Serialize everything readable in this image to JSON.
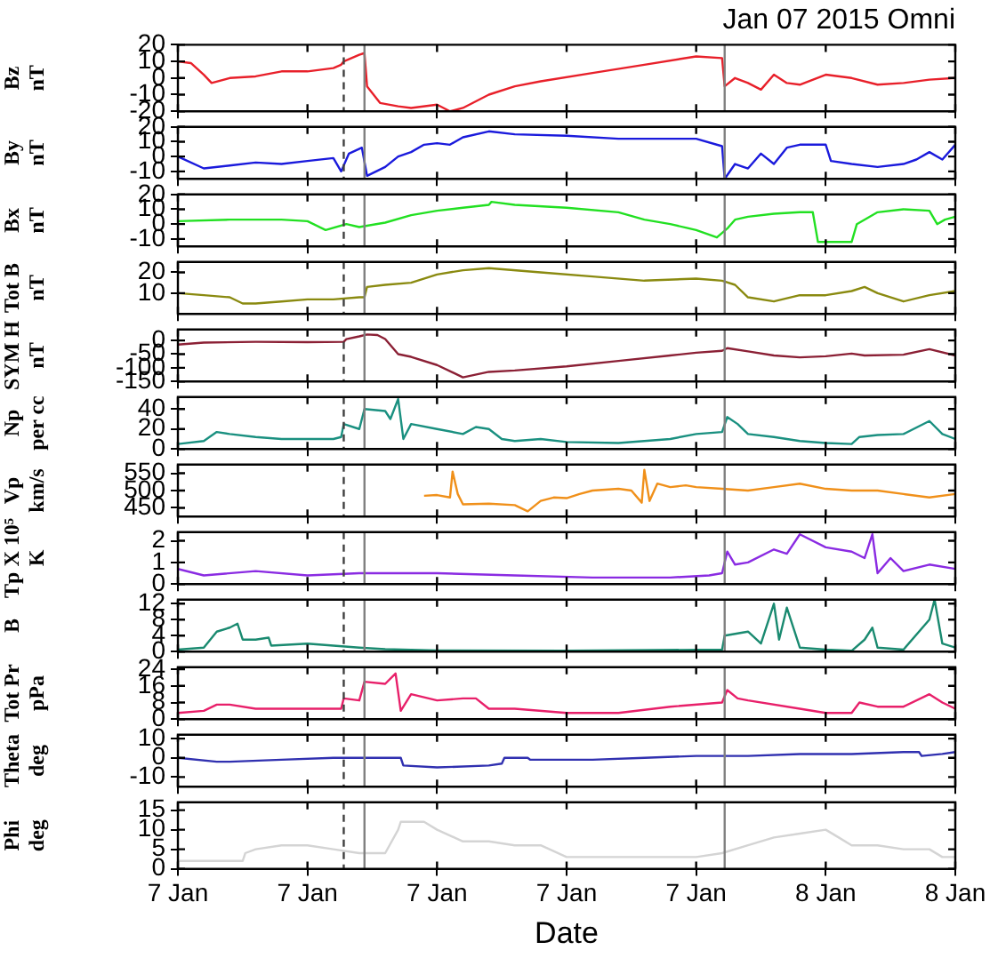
{
  "chart_data": [
    {
      "type": "line",
      "title": "Jan 07 2015 Omni",
      "ylabel": "Bz\nnT",
      "color": "#e8202a",
      "tick_labels": "y",
      "xlim": [
        "2015-01-07T00:00",
        "2015-01-08T06:00"
      ],
      "xticks": [
        {
          "value": "2015-01-07T00:00",
          "label": null
        },
        {
          "value": "2015-01-07T05:00",
          "label": null
        },
        {
          "value": "2015-01-07T10:00",
          "label": null
        },
        {
          "value": "2015-01-07T15:00",
          "label": null
        },
        {
          "value": "2015-01-07T20:00",
          "label": null
        },
        {
          "value": "2015-01-08T01:00",
          "label": null
        },
        {
          "value": "2015-01-08T06:00",
          "label": null
        }
      ],
      "ylim": [
        -20,
        20
      ],
      "yticks": [
        -20,
        -10,
        0,
        10,
        20
      ],
      "x": [
        "2015-01-07T00:00",
        "2015-01-07T00:30",
        "2015-01-07T01:00",
        "2015-01-07T01:18",
        "2015-01-07T02:00",
        "2015-01-07T03:00",
        "2015-01-07T04:00",
        "2015-01-07T05:00",
        "2015-01-07T06:00",
        "2015-01-07T06:18",
        "2015-01-07T06:24",
        "2015-01-07T07:00",
        "2015-01-07T07:12",
        "2015-01-07T07:18",
        "2015-01-07T07:48",
        "2015-01-07T08:30",
        "2015-01-07T09:00",
        "2015-01-07T10:00",
        "2015-01-07T10:30",
        "2015-01-07T11:00",
        "2015-01-07T12:00",
        "2015-01-07T13:00",
        "2015-01-07T14:00",
        "2015-01-07T16:00",
        "2015-01-07T18:00",
        "2015-01-07T20:00",
        "2015-01-07T21:00",
        "2015-01-07T21:06",
        "2015-01-07T21:30",
        "2015-01-07T22:00",
        "2015-01-07T22:30",
        "2015-01-07T23:00",
        "2015-01-07T23:30",
        "2015-01-08T00:00",
        "2015-01-08T01:00",
        "2015-01-08T02:00",
        "2015-01-08T03:00",
        "2015-01-08T04:00",
        "2015-01-08T05:00",
        "2015-01-08T06:00"
      ],
      "values": [
        10,
        9,
        2,
        -3,
        0,
        1,
        4,
        4,
        6,
        8,
        10,
        14,
        15,
        -5,
        -15,
        -17,
        -18,
        -16,
        -20,
        -18,
        -10,
        -5,
        -2,
        3,
        8,
        13,
        12,
        -5,
        0,
        -3,
        -7,
        2,
        -3,
        -4,
        2,
        0,
        -4,
        -3,
        -1,
        0
      ],
      "ref_lines": [
        {
          "axis": "x",
          "value": "2015-01-07T06:24",
          "line_style": "dashed",
          "color": "#404040"
        },
        {
          "axis": "x",
          "value": "2015-01-07T07:12",
          "color": "#808080"
        },
        {
          "axis": "x",
          "value": "2015-01-07T21:06",
          "color": "#808080"
        }
      ]
    },
    {
      "type": "line",
      "ylabel": "By\nnT",
      "color": "#1a1adc",
      "tick_labels": "y",
      "xlim": [
        "2015-01-07T00:00",
        "2015-01-08T06:00"
      ],
      "xticks": [
        {
          "value": "2015-01-07T00:00",
          "label": null
        },
        {
          "value": "2015-01-07T05:00",
          "label": null
        },
        {
          "value": "2015-01-07T10:00",
          "label": null
        },
        {
          "value": "2015-01-07T15:00",
          "label": null
        },
        {
          "value": "2015-01-07T20:00",
          "label": null
        },
        {
          "value": "2015-01-08T01:00",
          "label": null
        },
        {
          "value": "2015-01-08T06:00",
          "label": null
        }
      ],
      "ylim": [
        -15,
        20
      ],
      "yticks": [
        -10,
        0,
        10,
        20
      ],
      "x": [
        "2015-01-07T00:00",
        "2015-01-07T01:00",
        "2015-01-07T02:00",
        "2015-01-07T03:00",
        "2015-01-07T04:00",
        "2015-01-07T05:00",
        "2015-01-07T06:00",
        "2015-01-07T06:18",
        "2015-01-07T06:36",
        "2015-01-07T07:06",
        "2015-01-07T07:18",
        "2015-01-07T08:00",
        "2015-01-07T08:30",
        "2015-01-07T09:00",
        "2015-01-07T09:30",
        "2015-01-07T10:00",
        "2015-01-07T10:30",
        "2015-01-07T11:00",
        "2015-01-07T12:00",
        "2015-01-07T13:00",
        "2015-01-07T15:00",
        "2015-01-07T17:00",
        "2015-01-07T19:00",
        "2015-01-07T20:00",
        "2015-01-07T21:00",
        "2015-01-07T21:06",
        "2015-01-07T21:30",
        "2015-01-07T22:00",
        "2015-01-07T22:30",
        "2015-01-07T23:00",
        "2015-01-07T23:30",
        "2015-01-08T00:00",
        "2015-01-08T01:00",
        "2015-01-08T01:12",
        "2015-01-08T02:00",
        "2015-01-08T03:00",
        "2015-01-08T04:00",
        "2015-01-08T04:30",
        "2015-01-08T05:00",
        "2015-01-08T05:30",
        "2015-01-08T06:00"
      ],
      "values": [
        0,
        -8,
        -6,
        -4,
        -5,
        -3,
        -1,
        -10,
        2,
        6,
        -13,
        -7,
        0,
        3,
        8,
        9,
        8,
        13,
        17,
        15,
        14,
        12,
        12,
        12,
        7,
        -15,
        -5,
        -8,
        2,
        -5,
        6,
        8,
        8,
        -3,
        -5,
        -7,
        -5,
        -2,
        3,
        -2,
        8
      ],
      "ref_lines": [
        {
          "axis": "x",
          "value": "2015-01-07T06:24",
          "line_style": "dashed",
          "color": "#404040"
        },
        {
          "axis": "x",
          "value": "2015-01-07T07:12",
          "color": "#808080"
        },
        {
          "axis": "x",
          "value": "2015-01-07T21:06",
          "color": "#808080"
        }
      ]
    },
    {
      "type": "line",
      "ylabel": "Bx\nnT",
      "color": "#22e022",
      "tick_labels": "y",
      "xlim": [
        "2015-01-07T00:00",
        "2015-01-08T06:00"
      ],
      "xticks": [
        {
          "value": "2015-01-07T00:00",
          "label": null
        },
        {
          "value": "2015-01-07T05:00",
          "label": null
        },
        {
          "value": "2015-01-07T10:00",
          "label": null
        },
        {
          "value": "2015-01-07T15:00",
          "label": null
        },
        {
          "value": "2015-01-07T20:00",
          "label": null
        },
        {
          "value": "2015-01-08T01:00",
          "label": null
        },
        {
          "value": "2015-01-08T06:00",
          "label": null
        }
      ],
      "ylim": [
        -15,
        20
      ],
      "yticks": [
        -10,
        0,
        10,
        20
      ],
      "x": [
        "2015-01-07T00:00",
        "2015-01-07T02:00",
        "2015-01-07T04:00",
        "2015-01-07T05:00",
        "2015-01-07T05:42",
        "2015-01-07T06:30",
        "2015-01-07T07:00",
        "2015-01-07T08:00",
        "2015-01-07T09:00",
        "2015-01-07T10:00",
        "2015-01-07T11:00",
        "2015-01-07T12:00",
        "2015-01-07T12:06",
        "2015-01-07T13:00",
        "2015-01-07T15:00",
        "2015-01-07T17:00",
        "2015-01-07T18:00",
        "2015-01-07T19:00",
        "2015-01-07T20:00",
        "2015-01-07T20:48",
        "2015-01-07T21:12",
        "2015-01-07T21:30",
        "2015-01-07T22:00",
        "2015-01-07T23:00",
        "2015-01-08T00:00",
        "2015-01-08T00:30",
        "2015-01-08T00:42",
        "2015-01-08T02:00",
        "2015-01-08T02:12",
        "2015-01-08T03:00",
        "2015-01-08T04:00",
        "2015-01-08T05:00",
        "2015-01-08T05:18",
        "2015-01-08T05:36",
        "2015-01-08T06:00"
      ],
      "values": [
        2,
        3,
        3,
        2,
        -4,
        0,
        -2,
        1,
        6,
        9,
        11,
        13,
        15,
        13,
        11,
        8,
        3,
        0,
        -4,
        -9,
        -3,
        3,
        5,
        7,
        8,
        8,
        -12,
        -12,
        0,
        8,
        10,
        9,
        0,
        3,
        5
      ],
      "ref_lines": [
        {
          "axis": "x",
          "value": "2015-01-07T06:24",
          "line_style": "dashed",
          "color": "#404040"
        },
        {
          "axis": "x",
          "value": "2015-01-07T07:12",
          "color": "#808080"
        },
        {
          "axis": "x",
          "value": "2015-01-07T21:06",
          "color": "#808080"
        }
      ]
    },
    {
      "type": "line",
      "ylabel": "Tot B\nnT",
      "color": "#8a8a10",
      "tick_labels": "y",
      "xlim": [
        "2015-01-07T00:00",
        "2015-01-08T06:00"
      ],
      "xticks": [
        {
          "value": "2015-01-07T00:00",
          "label": null
        },
        {
          "value": "2015-01-07T05:00",
          "label": null
        },
        {
          "value": "2015-01-07T10:00",
          "label": null
        },
        {
          "value": "2015-01-07T15:00",
          "label": null
        },
        {
          "value": "2015-01-07T20:00",
          "label": null
        },
        {
          "value": "2015-01-08T01:00",
          "label": null
        },
        {
          "value": "2015-01-08T06:00",
          "label": null
        }
      ],
      "ylim": [
        0,
        25
      ],
      "yticks": [
        10,
        20
      ],
      "x": [
        "2015-01-07T00:00",
        "2015-01-07T01:00",
        "2015-01-07T02:00",
        "2015-01-07T02:30",
        "2015-01-07T03:00",
        "2015-01-07T04:00",
        "2015-01-07T05:00",
        "2015-01-07T06:00",
        "2015-01-07T07:00",
        "2015-01-07T07:12",
        "2015-01-07T07:18",
        "2015-01-07T08:00",
        "2015-01-07T09:00",
        "2015-01-07T10:00",
        "2015-01-07T11:00",
        "2015-01-07T12:00",
        "2015-01-07T14:00",
        "2015-01-07T16:00",
        "2015-01-07T18:00",
        "2015-01-07T20:00",
        "2015-01-07T21:00",
        "2015-01-07T21:30",
        "2015-01-07T22:00",
        "2015-01-07T23:00",
        "2015-01-08T00:00",
        "2015-01-08T01:00",
        "2015-01-08T02:00",
        "2015-01-08T02:30",
        "2015-01-08T03:00",
        "2015-01-08T04:00",
        "2015-01-08T05:00",
        "2015-01-08T06:00"
      ],
      "values": [
        10,
        9,
        8,
        5,
        5,
        6,
        7,
        7,
        8,
        8,
        13,
        14,
        15,
        19,
        21,
        22,
        20,
        18,
        16,
        17,
        16,
        14,
        8,
        6,
        9,
        9,
        11,
        13,
        10,
        6,
        9,
        11
      ],
      "ref_lines": [
        {
          "axis": "x",
          "value": "2015-01-07T06:24",
          "line_style": "dashed",
          "color": "#404040"
        },
        {
          "axis": "x",
          "value": "2015-01-07T07:12",
          "color": "#808080"
        },
        {
          "axis": "x",
          "value": "2015-01-07T21:06",
          "color": "#808080"
        }
      ]
    },
    {
      "type": "line",
      "ylabel": "SYM H\nnT",
      "color": "#8b2035",
      "tick_labels": "y",
      "xlim": [
        "2015-01-07T00:00",
        "2015-01-08T06:00"
      ],
      "xticks": [
        {
          "value": "2015-01-07T00:00",
          "label": null
        },
        {
          "value": "2015-01-07T05:00",
          "label": null
        },
        {
          "value": "2015-01-07T10:00",
          "label": null
        },
        {
          "value": "2015-01-07T15:00",
          "label": null
        },
        {
          "value": "2015-01-07T20:00",
          "label": null
        },
        {
          "value": "2015-01-08T01:00",
          "label": null
        },
        {
          "value": "2015-01-08T06:00",
          "label": null
        }
      ],
      "ylim": [
        -150,
        40
      ],
      "yticks": [
        -150,
        -100,
        -50,
        0
      ],
      "x": [
        "2015-01-07T00:00",
        "2015-01-07T01:00",
        "2015-01-07T03:00",
        "2015-01-07T05:00",
        "2015-01-07T06:24",
        "2015-01-07T06:30",
        "2015-01-07T07:00",
        "2015-01-07T07:18",
        "2015-01-07T07:42",
        "2015-01-07T08:00",
        "2015-01-07T08:30",
        "2015-01-07T09:00",
        "2015-01-07T10:00",
        "2015-01-07T11:00",
        "2015-01-07T12:00",
        "2015-01-07T13:00",
        "2015-01-07T15:00",
        "2015-01-07T17:00",
        "2015-01-07T19:00",
        "2015-01-07T20:00",
        "2015-01-07T21:00",
        "2015-01-07T21:12",
        "2015-01-07T22:00",
        "2015-01-07T23:00",
        "2015-01-08T00:00",
        "2015-01-08T01:00",
        "2015-01-08T02:00",
        "2015-01-08T02:30",
        "2015-01-08T04:00",
        "2015-01-08T05:00",
        "2015-01-08T06:00"
      ],
      "values": [
        -15,
        -8,
        -5,
        -6,
        -5,
        5,
        15,
        22,
        20,
        5,
        -50,
        -60,
        -90,
        -135,
        -115,
        -110,
        -95,
        -75,
        -55,
        -45,
        -38,
        -28,
        -40,
        -55,
        -62,
        -58,
        -48,
        -55,
        -52,
        -32,
        -55
      ],
      "ref_lines": [
        {
          "axis": "x",
          "value": "2015-01-07T06:24",
          "line_style": "dashed",
          "color": "#404040"
        },
        {
          "axis": "x",
          "value": "2015-01-07T07:12",
          "color": "#808080"
        },
        {
          "axis": "x",
          "value": "2015-01-07T21:06",
          "color": "#808080"
        }
      ]
    },
    {
      "type": "line",
      "ylabel": "Np\nper cc",
      "color": "#1a9080",
      "tick_labels": "y",
      "xlim": [
        "2015-01-07T00:00",
        "2015-01-08T06:00"
      ],
      "xticks": [
        {
          "value": "2015-01-07T00:00",
          "label": null
        },
        {
          "value": "2015-01-07T05:00",
          "label": null
        },
        {
          "value": "2015-01-07T10:00",
          "label": null
        },
        {
          "value": "2015-01-07T15:00",
          "label": null
        },
        {
          "value": "2015-01-07T20:00",
          "label": null
        },
        {
          "value": "2015-01-08T01:00",
          "label": null
        },
        {
          "value": "2015-01-08T06:00",
          "label": null
        }
      ],
      "ylim": [
        0,
        52
      ],
      "yticks": [
        0,
        20,
        40
      ],
      "x": [
        "2015-01-07T00:00",
        "2015-01-07T01:00",
        "2015-01-07T01:30",
        "2015-01-07T02:00",
        "2015-01-07T03:00",
        "2015-01-07T04:00",
        "2015-01-07T05:00",
        "2015-01-07T06:00",
        "2015-01-07T06:18",
        "2015-01-07T06:24",
        "2015-01-07T07:00",
        "2015-01-07T07:12",
        "2015-01-07T08:00",
        "2015-01-07T08:12",
        "2015-01-07T08:30",
        "2015-01-07T08:42",
        "2015-01-07T09:00",
        "2015-01-07T10:00",
        "2015-01-07T11:00",
        "2015-01-07T11:30",
        "2015-01-07T12:00",
        "2015-01-07T12:30",
        "2015-01-07T13:00",
        "2015-01-07T14:00",
        "2015-01-07T15:00",
        "2015-01-07T17:00",
        "2015-01-07T19:00",
        "2015-01-07T20:00",
        "2015-01-07T21:00",
        "2015-01-07T21:12",
        "2015-01-07T21:36",
        "2015-01-07T22:00",
        "2015-01-07T23:00",
        "2015-01-08T00:00",
        "2015-01-08T01:00",
        "2015-01-08T02:00",
        "2015-01-08T02:18",
        "2015-01-08T03:00",
        "2015-01-08T04:00",
        "2015-01-08T05:00",
        "2015-01-08T05:30",
        "2015-01-08T06:00"
      ],
      "values": [
        5,
        8,
        17,
        15,
        12,
        10,
        10,
        10,
        12,
        25,
        20,
        40,
        38,
        30,
        50,
        10,
        25,
        20,
        15,
        22,
        20,
        10,
        8,
        10,
        7,
        6,
        10,
        15,
        17,
        32,
        25,
        15,
        12,
        8,
        6,
        5,
        12,
        14,
        15,
        28,
        15,
        10
      ],
      "ref_lines": [
        {
          "axis": "x",
          "value": "2015-01-07T06:24",
          "line_style": "dashed",
          "color": "#404040"
        },
        {
          "axis": "x",
          "value": "2015-01-07T07:12",
          "color": "#808080"
        },
        {
          "axis": "x",
          "value": "2015-01-07T21:06",
          "color": "#808080"
        }
      ]
    },
    {
      "type": "line",
      "ylabel": "Vp\nkm/s",
      "color": "#f0901a",
      "tick_labels": "y",
      "xlim": [
        "2015-01-07T00:00",
        "2015-01-08T06:00"
      ],
      "xticks": [
        {
          "value": "2015-01-07T00:00",
          "label": null
        },
        {
          "value": "2015-01-07T05:00",
          "label": null
        },
        {
          "value": "2015-01-07T10:00",
          "label": null
        },
        {
          "value": "2015-01-07T15:00",
          "label": null
        },
        {
          "value": "2015-01-07T20:00",
          "label": null
        },
        {
          "value": "2015-01-08T01:00",
          "label": null
        },
        {
          "value": "2015-01-08T06:00",
          "label": null
        }
      ],
      "ylim": [
        425,
        575
      ],
      "yticks": [
        450,
        500,
        550
      ],
      "x": [
        "2015-01-07T09:30",
        "2015-01-07T10:00",
        "2015-01-07T10:30",
        "2015-01-07T10:36",
        "2015-01-07T10:48",
        "2015-01-07T11:00",
        "2015-01-07T12:00",
        "2015-01-07T13:00",
        "2015-01-07T13:30",
        "2015-01-07T14:00",
        "2015-01-07T14:30",
        "2015-01-07T15:00",
        "2015-01-07T15:30",
        "2015-01-07T16:00",
        "2015-01-07T17:00",
        "2015-01-07T17:30",
        "2015-01-07T17:54",
        "2015-01-07T18:00",
        "2015-01-07T18:12",
        "2015-01-07T18:30",
        "2015-01-07T19:00",
        "2015-01-07T19:36",
        "2015-01-07T20:00",
        "2015-01-07T21:00",
        "2015-01-07T22:00",
        "2015-01-07T23:00",
        "2015-01-08T00:00",
        "2015-01-08T01:00",
        "2015-01-08T02:00",
        "2015-01-08T03:00",
        "2015-01-08T04:00",
        "2015-01-08T05:00",
        "2015-01-08T06:00"
      ],
      "values": [
        485,
        487,
        480,
        555,
        490,
        460,
        462,
        458,
        440,
        470,
        480,
        478,
        490,
        500,
        505,
        500,
        465,
        560,
        470,
        520,
        510,
        515,
        510,
        505,
        500,
        510,
        520,
        505,
        500,
        500,
        490,
        480,
        490
      ],
      "ref_lines": [
        {
          "axis": "x",
          "value": "2015-01-07T06:24",
          "line_style": "dashed",
          "color": "#404040"
        },
        {
          "axis": "x",
          "value": "2015-01-07T07:12",
          "color": "#808080"
        },
        {
          "axis": "x",
          "value": "2015-01-07T21:06",
          "color": "#808080"
        }
      ]
    },
    {
      "type": "line",
      "ylabel": "Tp X 10⁵\nK",
      "color": "#8a2be2",
      "tick_labels": "y",
      "xlim": [
        "2015-01-07T00:00",
        "2015-01-08T06:00"
      ],
      "xticks": [
        {
          "value": "2015-01-07T00:00",
          "label": null
        },
        {
          "value": "2015-01-07T05:00",
          "label": null
        },
        {
          "value": "2015-01-07T10:00",
          "label": null
        },
        {
          "value": "2015-01-07T15:00",
          "label": null
        },
        {
          "value": "2015-01-07T20:00",
          "label": null
        },
        {
          "value": "2015-01-08T01:00",
          "label": null
        },
        {
          "value": "2015-01-08T06:00",
          "label": null
        }
      ],
      "ylim": [
        0,
        2.4
      ],
      "yticks": [
        0,
        1,
        2
      ],
      "x": [
        "2015-01-07T00:00",
        "2015-01-07T01:00",
        "2015-01-07T03:00",
        "2015-01-07T05:00",
        "2015-01-07T07:00",
        "2015-01-07T10:00",
        "2015-01-07T13:00",
        "2015-01-07T16:00",
        "2015-01-07T19:00",
        "2015-01-07T20:30",
        "2015-01-07T21:00",
        "2015-01-07T21:12",
        "2015-01-07T21:30",
        "2015-01-07T22:00",
        "2015-01-07T23:00",
        "2015-01-07T23:30",
        "2015-01-08T00:00",
        "2015-01-08T01:00",
        "2015-01-08T02:00",
        "2015-01-08T02:30",
        "2015-01-08T02:48",
        "2015-01-08T03:00",
        "2015-01-08T03:30",
        "2015-01-08T04:00",
        "2015-01-08T05:00",
        "2015-01-08T06:00"
      ],
      "values": [
        0.7,
        0.4,
        0.6,
        0.4,
        0.5,
        0.5,
        0.4,
        0.3,
        0.3,
        0.4,
        0.5,
        1.5,
        0.9,
        1.0,
        1.6,
        1.4,
        2.3,
        1.7,
        1.5,
        1.2,
        2.3,
        0.5,
        1.2,
        0.6,
        0.9,
        0.7
      ],
      "ref_lines": [
        {
          "axis": "x",
          "value": "2015-01-07T06:24",
          "line_style": "dashed",
          "color": "#404040"
        },
        {
          "axis": "x",
          "value": "2015-01-07T07:12",
          "color": "#808080"
        },
        {
          "axis": "x",
          "value": "2015-01-07T21:06",
          "color": "#808080"
        }
      ]
    },
    {
      "type": "line",
      "ylabel": "B",
      "color": "#1a8a70",
      "tick_labels": "y",
      "xlim": [
        "2015-01-07T00:00",
        "2015-01-08T06:00"
      ],
      "xticks": [
        {
          "value": "2015-01-07T00:00",
          "label": null
        },
        {
          "value": "2015-01-07T05:00",
          "label": null
        },
        {
          "value": "2015-01-07T10:00",
          "label": null
        },
        {
          "value": "2015-01-07T15:00",
          "label": null
        },
        {
          "value": "2015-01-07T20:00",
          "label": null
        },
        {
          "value": "2015-01-08T01:00",
          "label": null
        },
        {
          "value": "2015-01-08T06:00",
          "label": null
        }
      ],
      "ylim": [
        0,
        13
      ],
      "yticks": [
        0,
        4,
        8,
        12
      ],
      "x": [
        "2015-01-07T00:00",
        "2015-01-07T01:00",
        "2015-01-07T01:30",
        "2015-01-07T02:00",
        "2015-01-07T02:18",
        "2015-01-07T02:30",
        "2015-01-07T03:00",
        "2015-01-07T03:30",
        "2015-01-07T03:36",
        "2015-01-07T05:00",
        "2015-01-07T07:00",
        "2015-01-07T08:00",
        "2015-01-07T10:00",
        "2015-01-07T15:00",
        "2015-01-07T21:00",
        "2015-01-07T21:06",
        "2015-01-07T22:00",
        "2015-01-07T22:30",
        "2015-01-07T23:00",
        "2015-01-07T23:12",
        "2015-01-07T23:30",
        "2015-01-08T00:00",
        "2015-01-08T01:00",
        "2015-01-08T02:00",
        "2015-01-08T02:30",
        "2015-01-08T02:48",
        "2015-01-08T03:00",
        "2015-01-08T04:00",
        "2015-01-08T05:00",
        "2015-01-08T05:12",
        "2015-01-08T05:30",
        "2015-01-08T06:00"
      ],
      "values": [
        0.5,
        1,
        5,
        6,
        7,
        3,
        3,
        3.5,
        1.5,
        2,
        1,
        0.6,
        0.3,
        0.2,
        0.5,
        4,
        5,
        2,
        12,
        3,
        11,
        1,
        0.5,
        0.2,
        3,
        6,
        1,
        0.5,
        8,
        13,
        2,
        1
      ],
      "ref_lines": [
        {
          "axis": "x",
          "value": "2015-01-07T06:24",
          "line_style": "dashed",
          "color": "#404040"
        },
        {
          "axis": "x",
          "value": "2015-01-07T07:12",
          "color": "#808080"
        },
        {
          "axis": "x",
          "value": "2015-01-07T21:06",
          "color": "#808080"
        }
      ]
    },
    {
      "type": "line",
      "ylabel": "Tot Pr\npPa",
      "color": "#e8206a",
      "tick_labels": "y",
      "xlim": [
        "2015-01-07T00:00",
        "2015-01-08T06:00"
      ],
      "xticks": [
        {
          "value": "2015-01-07T00:00",
          "label": null
        },
        {
          "value": "2015-01-07T05:00",
          "label": null
        },
        {
          "value": "2015-01-07T10:00",
          "label": null
        },
        {
          "value": "2015-01-07T15:00",
          "label": null
        },
        {
          "value": "2015-01-07T20:00",
          "label": null
        },
        {
          "value": "2015-01-08T01:00",
          "label": null
        },
        {
          "value": "2015-01-08T06:00",
          "label": null
        }
      ],
      "ylim": [
        0,
        25
      ],
      "yticks": [
        0,
        8,
        16,
        24
      ],
      "x": [
        "2015-01-07T00:00",
        "2015-01-07T01:00",
        "2015-01-07T01:30",
        "2015-01-07T02:00",
        "2015-01-07T03:00",
        "2015-01-07T05:00",
        "2015-01-07T06:18",
        "2015-01-07T06:24",
        "2015-01-07T07:00",
        "2015-01-07T07:12",
        "2015-01-07T08:00",
        "2015-01-07T08:24",
        "2015-01-07T08:36",
        "2015-01-07T09:00",
        "2015-01-07T10:00",
        "2015-01-07T11:00",
        "2015-01-07T11:30",
        "2015-01-07T12:00",
        "2015-01-07T13:00",
        "2015-01-07T15:00",
        "2015-01-07T17:00",
        "2015-01-07T19:00",
        "2015-01-07T21:00",
        "2015-01-07T21:12",
        "2015-01-07T21:36",
        "2015-01-07T22:00",
        "2015-01-08T00:00",
        "2015-01-08T01:00",
        "2015-01-08T02:00",
        "2015-01-08T02:18",
        "2015-01-08T03:00",
        "2015-01-08T04:00",
        "2015-01-08T05:00",
        "2015-01-08T05:30",
        "2015-01-08T06:00"
      ],
      "values": [
        3,
        4,
        7,
        7,
        5,
        5,
        5,
        10,
        9,
        18,
        17,
        22,
        4,
        12,
        9,
        10,
        10,
        5,
        5,
        3,
        3,
        6,
        8,
        14,
        10,
        9,
        5,
        3,
        3,
        8,
        6,
        6,
        12,
        8,
        5
      ],
      "ref_lines": [
        {
          "axis": "x",
          "value": "2015-01-07T06:24",
          "line_style": "dashed",
          "color": "#404040"
        },
        {
          "axis": "x",
          "value": "2015-01-07T07:12",
          "color": "#808080"
        },
        {
          "axis": "x",
          "value": "2015-01-07T21:06",
          "color": "#808080"
        }
      ]
    },
    {
      "type": "line",
      "ylabel": "Theta\ndeg",
      "color": "#3030b0",
      "tick_labels": "y",
      "xlim": [
        "2015-01-07T00:00",
        "2015-01-08T06:00"
      ],
      "xticks": [
        {
          "value": "2015-01-07T00:00",
          "label": null
        },
        {
          "value": "2015-01-07T05:00",
          "label": null
        },
        {
          "value": "2015-01-07T10:00",
          "label": null
        },
        {
          "value": "2015-01-07T15:00",
          "label": null
        },
        {
          "value": "2015-01-07T20:00",
          "label": null
        },
        {
          "value": "2015-01-08T01:00",
          "label": null
        },
        {
          "value": "2015-01-08T06:00",
          "label": null
        }
      ],
      "ylim": [
        -15,
        12
      ],
      "yticks": [
        -10,
        0,
        10
      ],
      "x": [
        "2015-01-07T00:00",
        "2015-01-07T01:30",
        "2015-01-07T02:00",
        "2015-01-07T04:00",
        "2015-01-07T06:00",
        "2015-01-07T08:00",
        "2015-01-07T08:36",
        "2015-01-07T08:42",
        "2015-01-07T10:00",
        "2015-01-07T12:00",
        "2015-01-07T12:30",
        "2015-01-07T12:36",
        "2015-01-07T13:30",
        "2015-01-07T13:36",
        "2015-01-07T16:00",
        "2015-01-07T18:00",
        "2015-01-07T20:00",
        "2015-01-07T22:00",
        "2015-01-08T00:00",
        "2015-01-08T02:00",
        "2015-01-08T04:00",
        "2015-01-08T04:36",
        "2015-01-08T04:42",
        "2015-01-08T05:30",
        "2015-01-08T06:00"
      ],
      "values": [
        0,
        -2,
        -2,
        -1,
        0,
        0,
        0,
        -4,
        -5,
        -4,
        -3,
        0,
        0,
        -1,
        -1,
        0,
        1,
        1,
        2,
        2,
        3,
        3,
        1,
        2,
        3
      ],
      "ref_lines": [
        {
          "axis": "x",
          "value": "2015-01-07T06:24",
          "line_style": "dashed",
          "color": "#404040"
        },
        {
          "axis": "x",
          "value": "2015-01-07T07:12",
          "color": "#808080"
        },
        {
          "axis": "x",
          "value": "2015-01-07T21:06",
          "color": "#808080"
        }
      ]
    },
    {
      "type": "line",
      "ylabel": "Phi\ndeg",
      "xlabel": "Date",
      "color": "#d4d4d4",
      "xlim": [
        "2015-01-07T00:00",
        "2015-01-08T06:00"
      ],
      "xticks": [
        {
          "value": "2015-01-07T00:00",
          "label": "7 Jan"
        },
        {
          "value": "2015-01-07T05:00",
          "label": "7 Jan"
        },
        {
          "value": "2015-01-07T10:00",
          "label": "7 Jan"
        },
        {
          "value": "2015-01-07T15:00",
          "label": "7 Jan"
        },
        {
          "value": "2015-01-07T20:00",
          "label": "7 Jan"
        },
        {
          "value": "2015-01-08T01:00",
          "label": "8 Jan"
        },
        {
          "value": "2015-01-08T06:00",
          "label": "8 Jan"
        }
      ],
      "ylim": [
        0,
        17
      ],
      "yticks": [
        0,
        5,
        10,
        15
      ],
      "x": [
        "2015-01-07T00:00",
        "2015-01-07T02:30",
        "2015-01-07T02:36",
        "2015-01-07T03:00",
        "2015-01-07T04:00",
        "2015-01-07T05:00",
        "2015-01-07T06:00",
        "2015-01-07T07:00",
        "2015-01-07T08:00",
        "2015-01-07T08:30",
        "2015-01-07T08:36",
        "2015-01-07T09:30",
        "2015-01-07T10:00",
        "2015-01-07T11:00",
        "2015-01-07T12:00",
        "2015-01-07T13:00",
        "2015-01-07T14:00",
        "2015-01-07T15:00",
        "2015-01-07T17:00",
        "2015-01-07T19:00",
        "2015-01-07T20:00",
        "2015-01-07T21:00",
        "2015-01-07T22:00",
        "2015-01-07T23:00",
        "2015-01-08T00:00",
        "2015-01-08T01:00",
        "2015-01-08T01:30",
        "2015-01-08T02:00",
        "2015-01-08T03:00",
        "2015-01-08T04:00",
        "2015-01-08T05:00",
        "2015-01-08T05:30",
        "2015-01-08T06:00"
      ],
      "values": [
        2,
        2,
        4,
        5,
        6,
        6,
        5,
        4,
        4,
        10,
        12,
        12,
        10,
        7,
        7,
        6,
        6,
        3,
        3,
        3,
        3,
        4,
        6,
        8,
        9,
        10,
        8,
        6,
        6,
        5,
        5,
        3,
        3
      ],
      "ref_lines": [
        {
          "axis": "x",
          "value": "2015-01-07T06:24",
          "line_style": "dashed",
          "color": "#404040"
        },
        {
          "axis": "x",
          "value": "2015-01-07T07:12",
          "color": "#808080"
        },
        {
          "axis": "x",
          "value": "2015-01-07T21:06",
          "color": "#808080"
        }
      ]
    }
  ]
}
